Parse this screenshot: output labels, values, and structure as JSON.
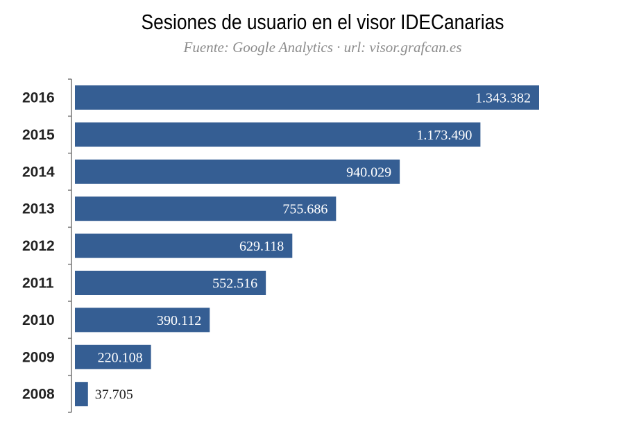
{
  "chart_data": {
    "type": "bar",
    "orientation": "horizontal",
    "title": "Sesiones de usuario en el visor IDECanarias",
    "subtitle": "Fuente: Google Analytics · url: visor.grafcan.es",
    "categories": [
      "2016",
      "2015",
      "2014",
      "2013",
      "2012",
      "2011",
      "2010",
      "2009",
      "2008"
    ],
    "values": [
      1343382,
      1173490,
      940029,
      755686,
      629118,
      552516,
      390112,
      220108,
      37705
    ],
    "value_labels": [
      "1.343.382",
      "1.173.490",
      "940.029",
      "755.686",
      "629.118",
      "552.516",
      "390.112",
      "220.108",
      "37.705"
    ],
    "xlim": [
      0,
      1343382
    ],
    "grid": false,
    "bar_color": "#355e93",
    "label_color_inside": "#ffffff",
    "label_color_outside": "#222222"
  }
}
